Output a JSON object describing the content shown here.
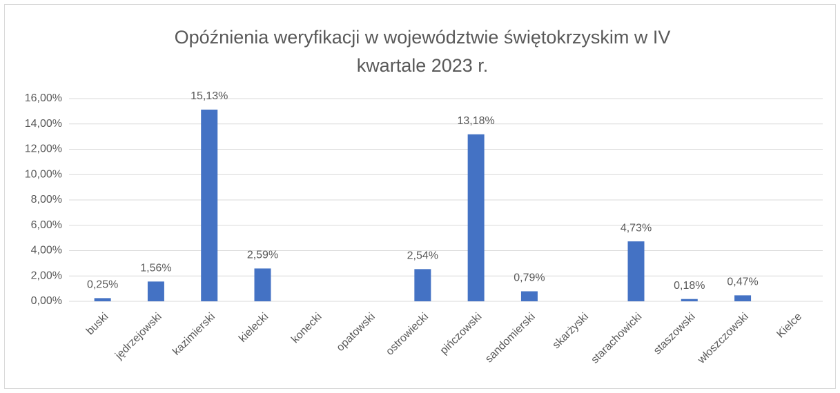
{
  "chart_data": {
    "type": "bar",
    "title": [
      "Opóźnienia weryfikacji w województwie świętokrzyskim  w IV",
      "kwartale 2023 r."
    ],
    "categories": [
      "buski",
      "jędrzejowski",
      "kazimierski",
      "kielecki",
      "konecki",
      "opatowski",
      "ostrowiecki",
      "pińczowski",
      "sandomierski",
      "skarżyski",
      "starachowicki",
      "staszowski",
      "włoszczowski",
      "Kielce"
    ],
    "values": [
      0.25,
      1.56,
      15.13,
      2.59,
      null,
      null,
      2.54,
      13.18,
      0.79,
      null,
      4.73,
      0.18,
      0.47,
      null
    ],
    "value_labels": [
      "0,25%",
      "1,56%",
      "15,13%",
      "2,59%",
      null,
      null,
      "2,54%",
      "13,18%",
      "0,79%",
      null,
      "4,73%",
      "0,18%",
      "0,47%",
      null
    ],
    "color": "#4472c4",
    "ylim": [
      0,
      16
    ],
    "yticks": [
      {
        "value": 0,
        "label": "0,00%"
      },
      {
        "value": 2,
        "label": "2,00%"
      },
      {
        "value": 4,
        "label": "4,00%"
      },
      {
        "value": 6,
        "label": "6,00%"
      },
      {
        "value": 8,
        "label": "8,00%"
      },
      {
        "value": 10,
        "label": "10,00%"
      },
      {
        "value": 12,
        "label": "12,00%"
      },
      {
        "value": 14,
        "label": "14,00%"
      },
      {
        "value": 16,
        "label": "16,00%"
      }
    ],
    "grid": true
  }
}
